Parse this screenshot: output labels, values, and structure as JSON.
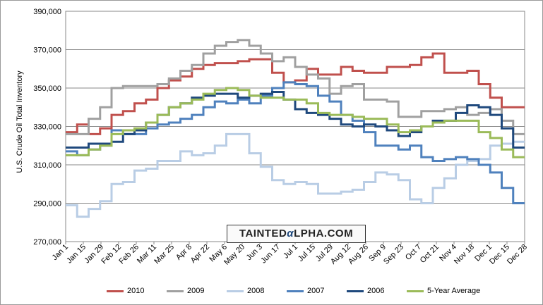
{
  "chart_data": {
    "type": "line",
    "title": "",
    "xlabel": "",
    "ylabel": "U.S. Crude Oil Total Inventory",
    "ylim": [
      270000,
      390000
    ],
    "y_ticks": [
      "270,000",
      "290,000",
      "310,000",
      "330,000",
      "350,000",
      "370,000",
      "390,000"
    ],
    "y_tick_values": [
      270000,
      290000,
      310000,
      330000,
      350000,
      370000,
      390000
    ],
    "grid": "horizontal",
    "legend_position": "bottom",
    "x_ticks": [
      "Jan 1",
      "Jan 15",
      "Jan 29",
      "Feb 12",
      "Feb 26",
      "Mar 11",
      "Mar 25",
      "Apr 8",
      "Apr 22",
      "May 6",
      "May 20",
      "Jun 3",
      "Jun 17",
      "Jul 1",
      "Jul 15",
      "Jul 29",
      "Aug 12",
      "Aug 26",
      "Sep 9",
      "Sep 23",
      "Oct 7",
      "Oct 21",
      "Nov 4",
      "Nov 18",
      "Dec 1",
      "Dec 15",
      "Dec 28"
    ],
    "series": [
      {
        "name": "2010",
        "color": "#c0504d",
        "values": [
          327000,
          331000,
          326000,
          329000,
          336000,
          338000,
          342000,
          344000,
          350000,
          354000,
          356000,
          360000,
          362000,
          363000,
          363000,
          364000,
          365000,
          365000,
          358000,
          353000,
          354000,
          360000,
          357000,
          357000,
          361000,
          359000,
          358000,
          358000,
          361000,
          361000,
          362000,
          366000,
          368000,
          358000,
          358000,
          359000,
          352000,
          345000,
          340000,
          340000
        ]
      },
      {
        "name": "2009",
        "color": "#a0a0a0",
        "values": [
          326000,
          326000,
          334000,
          340000,
          350000,
          351000,
          351000,
          351000,
          352000,
          355000,
          359000,
          362000,
          368000,
          372000,
          374000,
          375000,
          372000,
          368000,
          364000,
          366000,
          361000,
          357000,
          355000,
          347000,
          351000,
          352000,
          344000,
          344000,
          343000,
          335000,
          335000,
          338000,
          338000,
          339000,
          340000,
          336000,
          337000,
          339000,
          333000,
          326000
        ]
      },
      {
        "name": "2008",
        "color": "#b9cde5",
        "values": [
          289000,
          283000,
          287000,
          291000,
          300000,
          301000,
          307000,
          308000,
          312000,
          312000,
          317000,
          315000,
          316000,
          320000,
          326000,
          326000,
          316000,
          309000,
          302000,
          300000,
          301000,
          300000,
          295000,
          295000,
          296000,
          297000,
          301000,
          306000,
          305000,
          302000,
          292000,
          290000,
          298000,
          303000,
          310000,
          312000,
          313000,
          320000,
          321000,
          322000
        ]
      },
      {
        "name": "2007",
        "color": "#4f81bd",
        "values": [
          317000,
          315000,
          318000,
          320000,
          328000,
          326000,
          326000,
          329000,
          331000,
          332000,
          334000,
          336000,
          340000,
          343000,
          342000,
          344000,
          342000,
          346000,
          350000,
          353000,
          352000,
          351000,
          346000,
          343000,
          336000,
          333000,
          327000,
          320000,
          320000,
          318000,
          320000,
          314000,
          312000,
          313000,
          314000,
          313000,
          310000,
          306000,
          298000,
          290000
        ]
      },
      {
        "name": "2006",
        "color": "#1f497d",
        "values": [
          319000,
          319000,
          321000,
          321000,
          322000,
          326000,
          328000,
          332000,
          336000,
          340000,
          342000,
          345000,
          346000,
          347000,
          347000,
          345000,
          346000,
          347000,
          348000,
          344000,
          339000,
          337000,
          336000,
          334000,
          331000,
          330000,
          331000,
          330000,
          328000,
          325000,
          327000,
          330000,
          333000,
          333000,
          337000,
          341000,
          340000,
          336000,
          329000,
          319000
        ]
      },
      {
        "name": "5-Year Average",
        "color": "#9bbb59",
        "values": [
          315000,
          315000,
          318000,
          320000,
          326000,
          328000,
          329000,
          332000,
          336000,
          340000,
          342000,
          344000,
          347000,
          349000,
          350000,
          349000,
          346000,
          345000,
          345000,
          344000,
          344000,
          342000,
          337000,
          336000,
          336000,
          335000,
          334000,
          334000,
          331000,
          327000,
          328000,
          330000,
          332000,
          333000,
          333000,
          333000,
          327000,
          324000,
          318000,
          314000
        ]
      }
    ]
  }
}
